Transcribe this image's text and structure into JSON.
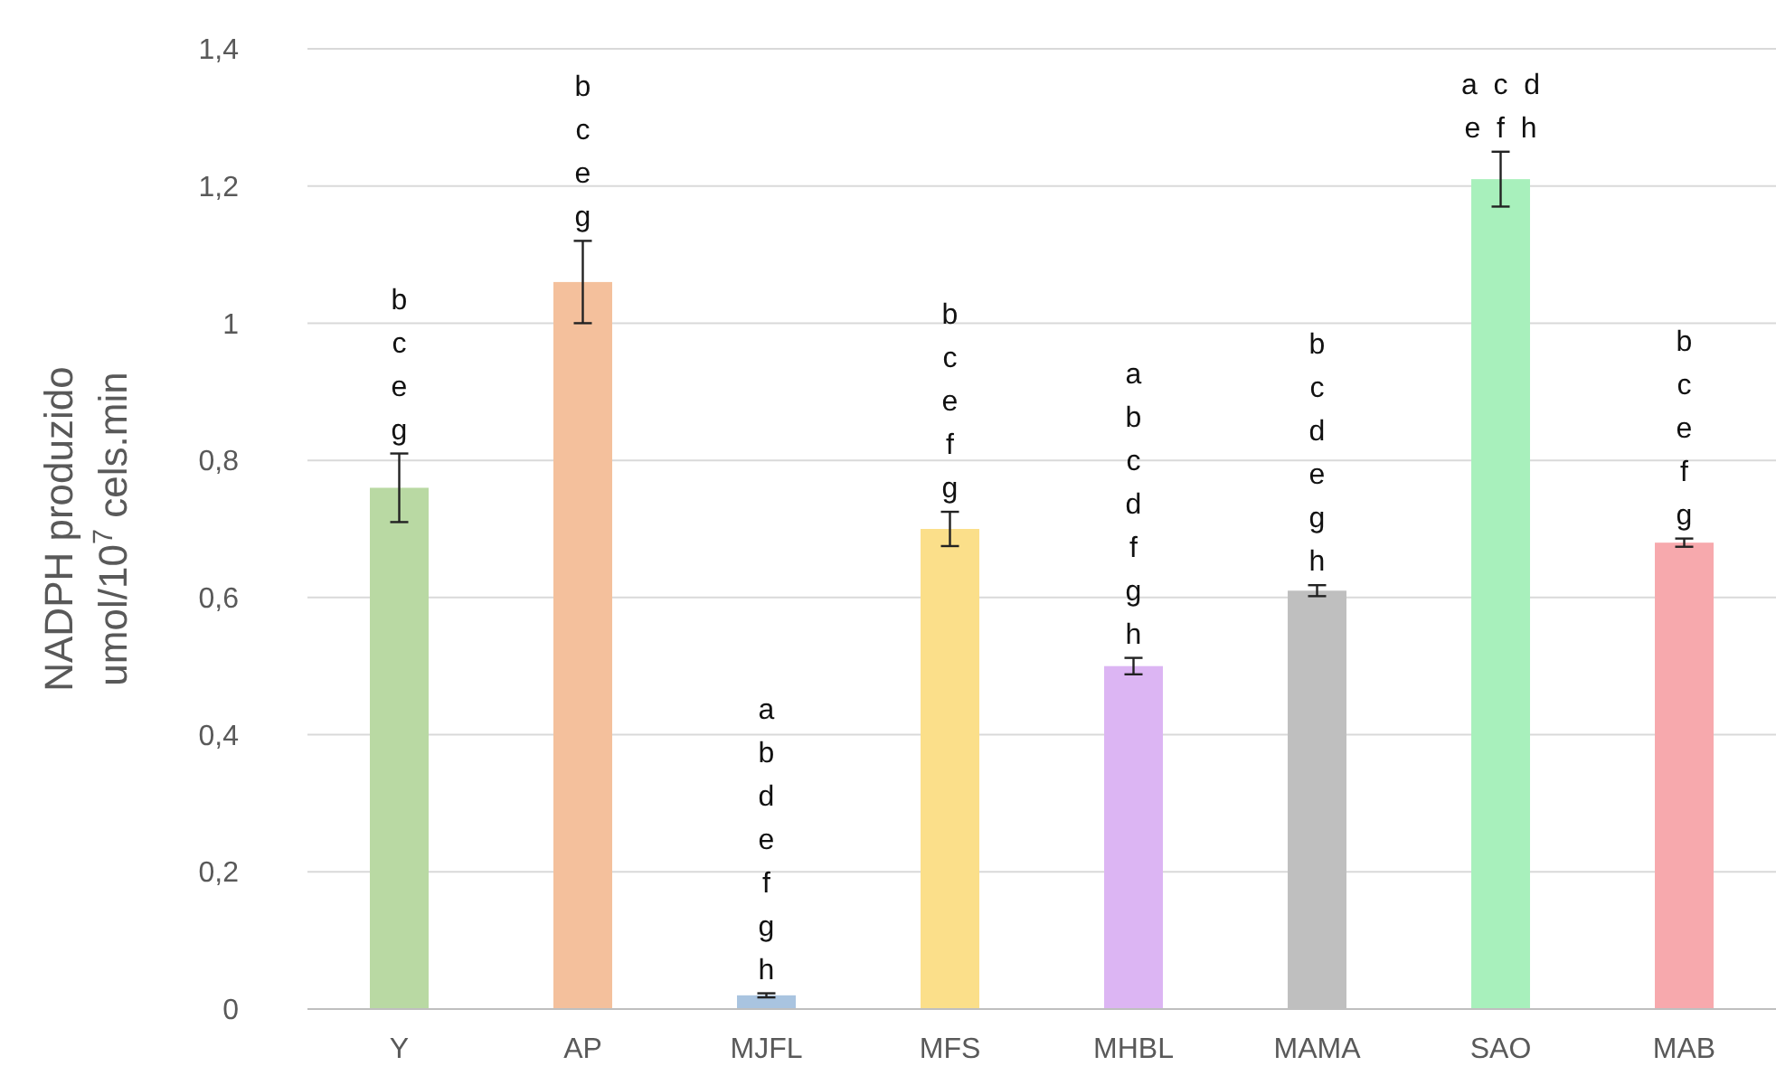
{
  "chart_data": {
    "type": "bar",
    "ylabel": "NADPH produzido\numol/10$^{7}$ cels.min",
    "categories": [
      "Y",
      "AP",
      "MJFL",
      "MFS",
      "MHBL",
      "MAMA",
      "SAO",
      "MAB"
    ],
    "values": [
      0.76,
      1.06,
      0.02,
      0.7,
      0.5,
      0.61,
      1.21,
      0.68
    ],
    "errors": [
      0.05,
      0.06,
      0.003,
      0.025,
      0.012,
      0.008,
      0.04,
      0.006
    ],
    "colors": [
      "#b9d9a3",
      "#f4c09c",
      "#a9c4e0",
      "#fbdf8a",
      "#dcb5f3",
      "#bfbfbf",
      "#a8f0bc",
      "#f7a9ad"
    ],
    "ylim": [
      0,
      1.4
    ],
    "yticks": [
      0,
      {
        "value": 0.2,
        "label": "0,2"
      },
      {
        "value": 0.4,
        "label": "0,4"
      },
      {
        "value": 0.6,
        "label": "0,6"
      },
      {
        "value": 0.8,
        "label": "0,8"
      },
      1,
      {
        "value": 1.2,
        "label": "1,2"
      },
      {
        "value": 1.4,
        "label": "1,4"
      }
    ],
    "grid": "y",
    "annotations": [
      {
        "text": "b\nc\ne\ng",
        "x": "Y",
        "y": 0.81
      },
      {
        "text": "b\nc\ne\ng",
        "x": "AP",
        "y": 1.12
      },
      {
        "text": "a\nb\nd\ne\nf\ng\nh",
        "x": "MJFL",
        "y": 0.023
      },
      {
        "text": "b\nc\ne\nf\ng",
        "x": "MFS",
        "y": 0.725
      },
      {
        "text": "a\nb\nc\nd\nf\ng\nh",
        "x": "MHBL",
        "y": 0.512
      },
      {
        "text": "b\nc\nd\ne\ng\nh",
        "x": "MAMA",
        "y": 0.618
      },
      {
        "text": "a  c  d\ne  f  h",
        "x": "SAO",
        "y": 1.25
      },
      {
        "text": "b\nc\ne\nf\ng",
        "x": "MAB",
        "y": 0.686
      }
    ]
  }
}
